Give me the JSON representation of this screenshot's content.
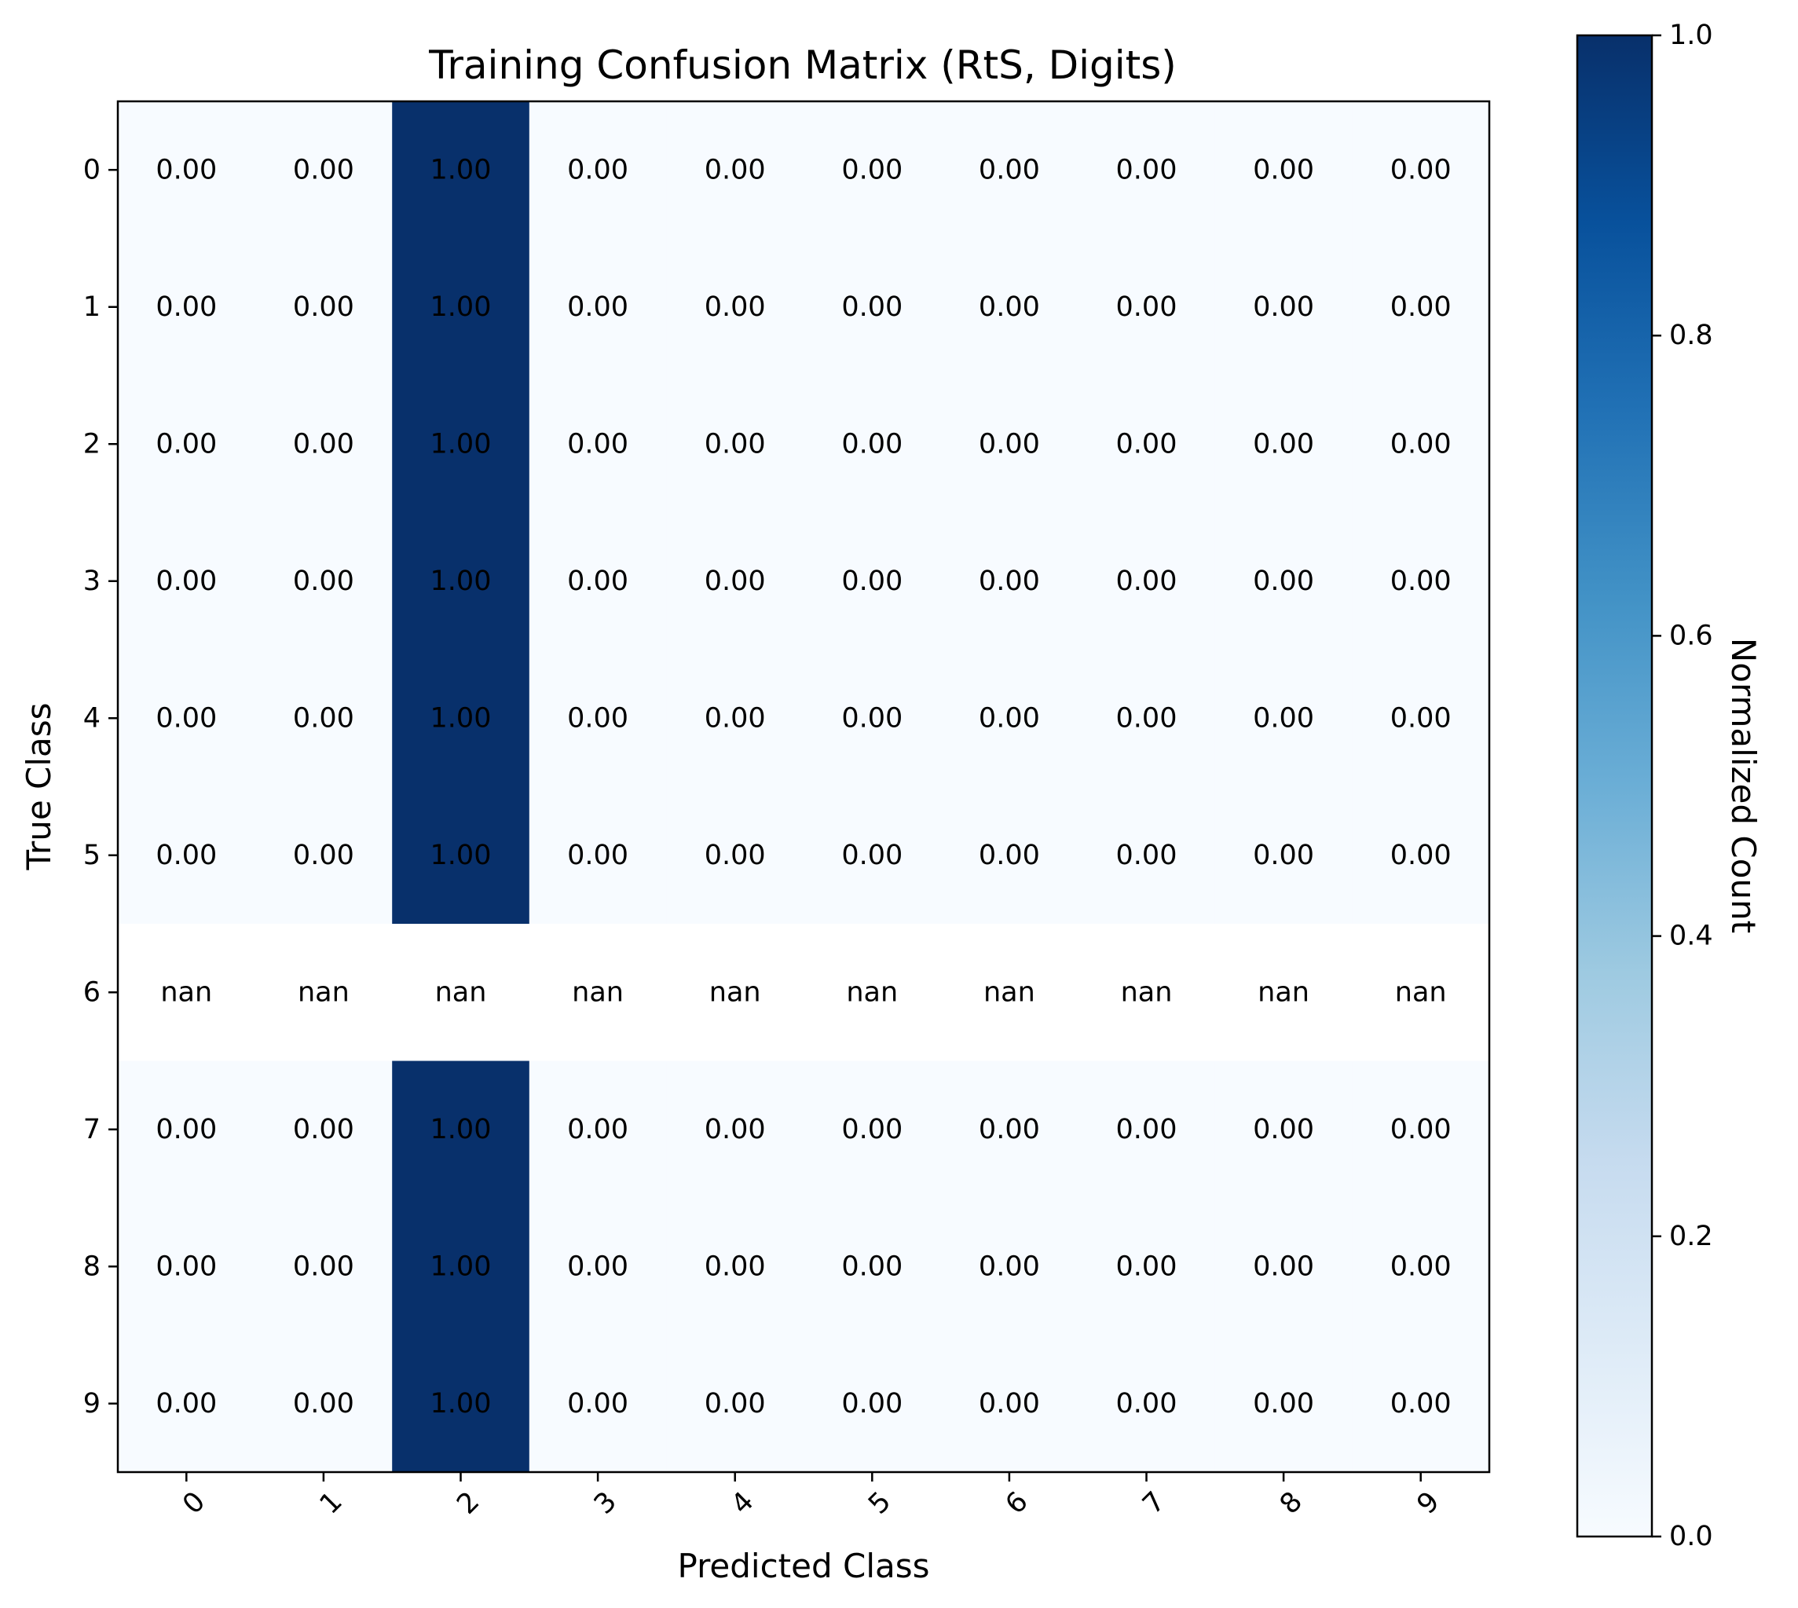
{
  "chart_data": {
    "type": "heatmap",
    "title": "Training Confusion Matrix (RtS, Digits)",
    "xlabel": "Predicted Class",
    "ylabel": "True Class",
    "x_categories": [
      "0",
      "1",
      "2",
      "3",
      "4",
      "5",
      "6",
      "7",
      "8",
      "9"
    ],
    "y_categories": [
      "0",
      "1",
      "2",
      "3",
      "4",
      "5",
      "6",
      "7",
      "8",
      "9"
    ],
    "values": [
      [
        0,
        0,
        1,
        0,
        0,
        0,
        0,
        0,
        0,
        0
      ],
      [
        0,
        0,
        1,
        0,
        0,
        0,
        0,
        0,
        0,
        0
      ],
      [
        0,
        0,
        1,
        0,
        0,
        0,
        0,
        0,
        0,
        0
      ],
      [
        0,
        0,
        1,
        0,
        0,
        0,
        0,
        0,
        0,
        0
      ],
      [
        0,
        0,
        1,
        0,
        0,
        0,
        0,
        0,
        0,
        0
      ],
      [
        0,
        0,
        1,
        0,
        0,
        0,
        0,
        0,
        0,
        0
      ],
      [
        null,
        null,
        null,
        null,
        null,
        null,
        null,
        null,
        null,
        null
      ],
      [
        0,
        0,
        1,
        0,
        0,
        0,
        0,
        0,
        0,
        0
      ],
      [
        0,
        0,
        1,
        0,
        0,
        0,
        0,
        0,
        0,
        0
      ],
      [
        0,
        0,
        1,
        0,
        0,
        0,
        0,
        0,
        0,
        0
      ]
    ],
    "cell_labels": [
      [
        "0.00",
        "0.00",
        "1.00",
        "0.00",
        "0.00",
        "0.00",
        "0.00",
        "0.00",
        "0.00",
        "0.00"
      ],
      [
        "0.00",
        "0.00",
        "1.00",
        "0.00",
        "0.00",
        "0.00",
        "0.00",
        "0.00",
        "0.00",
        "0.00"
      ],
      [
        "0.00",
        "0.00",
        "1.00",
        "0.00",
        "0.00",
        "0.00",
        "0.00",
        "0.00",
        "0.00",
        "0.00"
      ],
      [
        "0.00",
        "0.00",
        "1.00",
        "0.00",
        "0.00",
        "0.00",
        "0.00",
        "0.00",
        "0.00",
        "0.00"
      ],
      [
        "0.00",
        "0.00",
        "1.00",
        "0.00",
        "0.00",
        "0.00",
        "0.00",
        "0.00",
        "0.00",
        "0.00"
      ],
      [
        "0.00",
        "0.00",
        "1.00",
        "0.00",
        "0.00",
        "0.00",
        "0.00",
        "0.00",
        "0.00",
        "0.00"
      ],
      [
        "nan",
        "nan",
        "nan",
        "nan",
        "nan",
        "nan",
        "nan",
        "nan",
        "nan",
        "nan"
      ],
      [
        "0.00",
        "0.00",
        "1.00",
        "0.00",
        "0.00",
        "0.00",
        "0.00",
        "0.00",
        "0.00",
        "0.00"
      ],
      [
        "0.00",
        "0.00",
        "1.00",
        "0.00",
        "0.00",
        "0.00",
        "0.00",
        "0.00",
        "0.00",
        "0.00"
      ],
      [
        "0.00",
        "0.00",
        "1.00",
        "0.00",
        "0.00",
        "0.00",
        "0.00",
        "0.00",
        "0.00",
        "0.00"
      ]
    ],
    "colorbar": {
      "label": "Normalized Count",
      "range": [
        0,
        1
      ],
      "ticks": [
        0,
        0.2,
        0.4,
        0.6,
        0.8,
        1
      ],
      "tick_labels": [
        "0.0",
        "0.2",
        "0.4",
        "0.6",
        "0.8",
        "1.0"
      ],
      "colormap": "Blues",
      "min_color": "#f7fbff",
      "max_color": "#08306b"
    },
    "nan_color": "#ffffff"
  }
}
